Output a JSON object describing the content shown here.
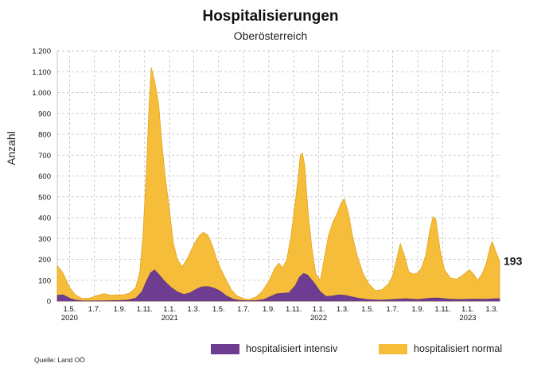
{
  "chart_data": {
    "type": "area",
    "title": "Hospitalisierungen",
    "subtitle": "Oberösterreich",
    "ylabel": "Anzahl",
    "ylim": [
      0,
      1200
    ],
    "yticks": [
      0,
      100,
      200,
      300,
      400,
      500,
      600,
      700,
      800,
      900,
      1000,
      1100,
      1200
    ],
    "ytick_labels": [
      "0",
      "100",
      "200",
      "300",
      "400",
      "500",
      "600",
      "700",
      "800",
      "900",
      "1.000",
      "1.100",
      "1.200"
    ],
    "xlim": [
      "2020-04-01",
      "2023-03-20"
    ],
    "xticks": [
      {
        "date": "2020-05-01",
        "label": "1.5.",
        "year": "2020"
      },
      {
        "date": "2020-07-01",
        "label": "1.7.",
        "year": ""
      },
      {
        "date": "2020-09-01",
        "label": "1.9.",
        "year": ""
      },
      {
        "date": "2020-11-01",
        "label": "1.11.",
        "year": ""
      },
      {
        "date": "2021-01-01",
        "label": "1.1.",
        "year": "2021"
      },
      {
        "date": "2021-03-01",
        "label": "1.3.",
        "year": ""
      },
      {
        "date": "2021-05-01",
        "label": "1.5.",
        "year": ""
      },
      {
        "date": "2021-07-01",
        "label": "1.7.",
        "year": ""
      },
      {
        "date": "2021-09-01",
        "label": "1.9.",
        "year": ""
      },
      {
        "date": "2021-11-01",
        "label": "1.11.",
        "year": ""
      },
      {
        "date": "2022-01-01",
        "label": "1.1.",
        "year": "2022"
      },
      {
        "date": "2022-03-01",
        "label": "1.3.",
        "year": ""
      },
      {
        "date": "2022-05-01",
        "label": "1.5.",
        "year": ""
      },
      {
        "date": "2022-07-01",
        "label": "1.7.",
        "year": ""
      },
      {
        "date": "2022-09-01",
        "label": "1.9.",
        "year": ""
      },
      {
        "date": "2022-11-01",
        "label": "1.11.",
        "year": ""
      },
      {
        "date": "2023-01-01",
        "label": "1.1.",
        "year": "2023"
      },
      {
        "date": "2023-03-01",
        "label": "1.3.",
        "year": ""
      }
    ],
    "grid": true,
    "stacked": true,
    "last_value_label": "193",
    "series": [
      {
        "name": "hospitalisiert intensiv",
        "color": "#6e3d92",
        "points": [
          [
            "2020-04-01",
            28
          ],
          [
            "2020-04-15",
            30
          ],
          [
            "2020-05-01",
            14
          ],
          [
            "2020-05-15",
            5
          ],
          [
            "2020-06-01",
            2
          ],
          [
            "2020-07-01",
            1
          ],
          [
            "2020-08-01",
            2
          ],
          [
            "2020-09-01",
            3
          ],
          [
            "2020-09-20",
            5
          ],
          [
            "2020-10-10",
            14
          ],
          [
            "2020-10-25",
            45
          ],
          [
            "2020-11-05",
            95
          ],
          [
            "2020-11-15",
            135
          ],
          [
            "2020-11-25",
            150
          ],
          [
            "2020-12-05",
            130
          ],
          [
            "2020-12-20",
            95
          ],
          [
            "2021-01-05",
            65
          ],
          [
            "2021-01-20",
            45
          ],
          [
            "2021-02-05",
            32
          ],
          [
            "2021-02-20",
            40
          ],
          [
            "2021-03-05",
            55
          ],
          [
            "2021-03-20",
            68
          ],
          [
            "2021-04-05",
            70
          ],
          [
            "2021-04-20",
            62
          ],
          [
            "2021-05-05",
            48
          ],
          [
            "2021-05-20",
            25
          ],
          [
            "2021-06-05",
            10
          ],
          [
            "2021-06-20",
            4
          ],
          [
            "2021-07-10",
            2
          ],
          [
            "2021-08-01",
            3
          ],
          [
            "2021-08-20",
            8
          ],
          [
            "2021-09-05",
            22
          ],
          [
            "2021-09-20",
            35
          ],
          [
            "2021-10-05",
            38
          ],
          [
            "2021-10-20",
            40
          ],
          [
            "2021-11-05",
            75
          ],
          [
            "2021-11-15",
            115
          ],
          [
            "2021-11-25",
            133
          ],
          [
            "2021-12-05",
            125
          ],
          [
            "2021-12-20",
            90
          ],
          [
            "2022-01-05",
            45
          ],
          [
            "2022-01-20",
            22
          ],
          [
            "2022-02-05",
            25
          ],
          [
            "2022-02-20",
            30
          ],
          [
            "2022-03-05",
            28
          ],
          [
            "2022-03-20",
            22
          ],
          [
            "2022-04-05",
            15
          ],
          [
            "2022-05-01",
            8
          ],
          [
            "2022-06-01",
            5
          ],
          [
            "2022-07-01",
            8
          ],
          [
            "2022-08-01",
            12
          ],
          [
            "2022-09-01",
            8
          ],
          [
            "2022-10-01",
            14
          ],
          [
            "2022-10-20",
            15
          ],
          [
            "2022-11-15",
            10
          ],
          [
            "2022-12-15",
            8
          ],
          [
            "2023-01-15",
            10
          ],
          [
            "2023-02-15",
            9
          ],
          [
            "2023-03-10",
            12
          ],
          [
            "2023-03-20",
            11
          ]
        ]
      },
      {
        "name": "hospitalisiert normal",
        "color": "#f5bd3a",
        "points": [
          [
            "2020-04-01",
            170
          ],
          [
            "2020-04-15",
            135
          ],
          [
            "2020-05-01",
            65
          ],
          [
            "2020-05-15",
            30
          ],
          [
            "2020-06-01",
            12
          ],
          [
            "2020-06-20",
            15
          ],
          [
            "2020-07-10",
            28
          ],
          [
            "2020-07-25",
            35
          ],
          [
            "2020-08-10",
            28
          ],
          [
            "2020-08-25",
            30
          ],
          [
            "2020-09-10",
            30
          ],
          [
            "2020-09-25",
            38
          ],
          [
            "2020-10-10",
            65
          ],
          [
            "2020-10-20",
            140
          ],
          [
            "2020-10-28",
            320
          ],
          [
            "2020-11-05",
            620
          ],
          [
            "2020-11-12",
            950
          ],
          [
            "2020-11-17",
            1120
          ],
          [
            "2020-11-25",
            1060
          ],
          [
            "2020-12-05",
            950
          ],
          [
            "2020-12-12",
            780
          ],
          [
            "2020-12-20",
            620
          ],
          [
            "2021-01-01",
            430
          ],
          [
            "2021-01-10",
            280
          ],
          [
            "2021-01-20",
            200
          ],
          [
            "2021-02-01",
            165
          ],
          [
            "2021-02-15",
            210
          ],
          [
            "2021-03-01",
            270
          ],
          [
            "2021-03-15",
            315
          ],
          [
            "2021-03-25",
            330
          ],
          [
            "2021-04-05",
            315
          ],
          [
            "2021-04-15",
            270
          ],
          [
            "2021-04-25",
            210
          ],
          [
            "2021-05-05",
            160
          ],
          [
            "2021-05-15",
            120
          ],
          [
            "2021-06-01",
            55
          ],
          [
            "2021-06-15",
            25
          ],
          [
            "2021-07-01",
            12
          ],
          [
            "2021-07-15",
            8
          ],
          [
            "2021-08-01",
            20
          ],
          [
            "2021-08-15",
            45
          ],
          [
            "2021-09-01",
            95
          ],
          [
            "2021-09-15",
            155
          ],
          [
            "2021-09-25",
            182
          ],
          [
            "2021-10-05",
            160
          ],
          [
            "2021-10-15",
            200
          ],
          [
            "2021-10-25",
            310
          ],
          [
            "2021-11-05",
            480
          ],
          [
            "2021-11-12",
            600
          ],
          [
            "2021-11-17",
            700
          ],
          [
            "2021-11-22",
            710
          ],
          [
            "2021-11-28",
            650
          ],
          [
            "2021-12-05",
            450
          ],
          [
            "2021-12-15",
            260
          ],
          [
            "2021-12-25",
            130
          ],
          [
            "2022-01-05",
            100
          ],
          [
            "2022-01-15",
            210
          ],
          [
            "2022-01-25",
            315
          ],
          [
            "2022-02-05",
            380
          ],
          [
            "2022-02-15",
            420
          ],
          [
            "2022-02-25",
            470
          ],
          [
            "2022-03-05",
            490
          ],
          [
            "2022-03-15",
            420
          ],
          [
            "2022-03-25",
            310
          ],
          [
            "2022-04-05",
            220
          ],
          [
            "2022-04-20",
            130
          ],
          [
            "2022-05-05",
            80
          ],
          [
            "2022-05-20",
            50
          ],
          [
            "2022-06-05",
            55
          ],
          [
            "2022-06-20",
            80
          ],
          [
            "2022-07-01",
            120
          ],
          [
            "2022-07-10",
            195
          ],
          [
            "2022-07-20",
            275
          ],
          [
            "2022-07-28",
            230
          ],
          [
            "2022-08-10",
            140
          ],
          [
            "2022-08-20",
            130
          ],
          [
            "2022-09-01",
            135
          ],
          [
            "2022-09-10",
            160
          ],
          [
            "2022-09-20",
            220
          ],
          [
            "2022-09-30",
            340
          ],
          [
            "2022-10-08",
            405
          ],
          [
            "2022-10-15",
            390
          ],
          [
            "2022-10-25",
            250
          ],
          [
            "2022-11-05",
            150
          ],
          [
            "2022-11-20",
            110
          ],
          [
            "2022-12-05",
            105
          ],
          [
            "2022-12-20",
            125
          ],
          [
            "2023-01-05",
            150
          ],
          [
            "2023-01-15",
            130
          ],
          [
            "2023-01-25",
            100
          ],
          [
            "2023-02-05",
            130
          ],
          [
            "2023-02-15",
            180
          ],
          [
            "2023-02-25",
            260
          ],
          [
            "2023-03-02",
            285
          ],
          [
            "2023-03-10",
            240
          ],
          [
            "2023-03-20",
            193
          ]
        ]
      }
    ],
    "legend": [
      {
        "label": "hospitalisiert intensiv",
        "color": "#6e3d92"
      },
      {
        "label": "hospitalisiert normal",
        "color": "#f5bd3a"
      }
    ],
    "source": "Quelle: Land OÖ"
  }
}
